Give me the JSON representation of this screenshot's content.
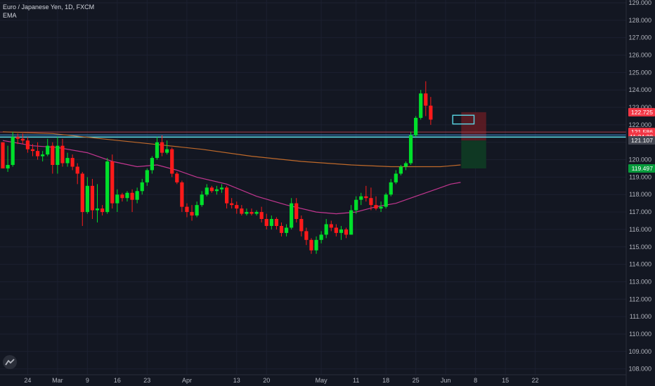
{
  "legend": {
    "symbol": "Euro / Japanese Yen, 1D, FXCM",
    "indicator": "EMA"
  },
  "colors": {
    "background": "#131722",
    "grid": "#1c2030",
    "axis_text": "#b2b5be",
    "up": "#00e02b",
    "down": "#ff1a1a",
    "ema_fast": "#c2368f",
    "ema_slow": "#c06a2a",
    "hline_cyan": "#5ad8e6",
    "hline_blue": "#3d8fd9",
    "hline_red": "#a43d48",
    "stop_zone": "#5e1c24",
    "target_zone": "#0f3a24",
    "price_red": "#f23645",
    "price_green": "#089b3c",
    "price_gray": "#434651"
  },
  "icons": [
    "tradingview-logo-icon"
  ],
  "chart_data": {
    "type": "candlestick",
    "title": "Euro / Japanese Yen, 1D, FXCM",
    "indicators": [
      "EMA"
    ],
    "ylim": [
      108.0,
      129.0
    ],
    "y_ticks": [
      "129.000",
      "128.000",
      "127.000",
      "126.000",
      "125.000",
      "124.000",
      "123.000",
      "122.000",
      "121.000",
      "120.000",
      "119.000",
      "118.000",
      "117.000",
      "116.000",
      "115.000",
      "114.000",
      "113.000",
      "112.000",
      "111.000",
      "110.000",
      "109.000",
      "108.000"
    ],
    "x_ticks": [
      "24",
      "Mar",
      "9",
      "16",
      "23",
      "Apr",
      "13",
      "20",
      "May",
      "11",
      "18",
      "25",
      "Jun",
      "8",
      "15",
      "22"
    ],
    "x_tick_index": [
      5,
      11,
      17,
      23,
      29,
      37,
      47,
      53,
      64,
      71,
      77,
      83,
      89,
      95,
      101,
      107
    ],
    "candles": [
      [
        121.0,
        121.0,
        119.6,
        119.5
      ],
      [
        119.5,
        120.8,
        119.3,
        119.7
      ],
      [
        119.7,
        121.6,
        119.6,
        121.3
      ],
      [
        121.3,
        121.5,
        120.9,
        121.2
      ],
      [
        121.2,
        121.5,
        120.9,
        121.1
      ],
      [
        121.1,
        121.3,
        120.4,
        120.6
      ],
      [
        120.6,
        120.9,
        120.2,
        120.5
      ],
      [
        120.5,
        121.0,
        120.0,
        120.2
      ],
      [
        120.2,
        120.5,
        119.9,
        120.3
      ],
      [
        120.3,
        121.2,
        120.2,
        120.8
      ],
      [
        120.8,
        121.0,
        119.2,
        119.7
      ],
      [
        119.7,
        121.3,
        119.2,
        120.8
      ],
      [
        120.8,
        121.2,
        119.6,
        119.8
      ],
      [
        119.8,
        120.4,
        119.6,
        120.1
      ],
      [
        120.1,
        120.3,
        119.4,
        119.6
      ],
      [
        119.6,
        119.8,
        118.6,
        119.2
      ],
      [
        119.2,
        119.3,
        116.2,
        117.0
      ],
      [
        117.0,
        119.0,
        116.9,
        118.5
      ],
      [
        118.5,
        118.9,
        116.6,
        117.1
      ],
      [
        117.1,
        118.6,
        116.4,
        117.2
      ],
      [
        117.2,
        117.4,
        116.8,
        117.0
      ],
      [
        117.0,
        120.1,
        116.9,
        119.9
      ],
      [
        119.9,
        120.3,
        117.2,
        117.5
      ],
      [
        117.5,
        118.3,
        117.0,
        118.0
      ],
      [
        118.0,
        118.1,
        117.6,
        117.8
      ],
      [
        117.8,
        118.2,
        117.6,
        118.1
      ],
      [
        118.1,
        118.3,
        117.0,
        117.7
      ],
      [
        117.7,
        118.4,
        117.5,
        118.2
      ],
      [
        118.2,
        118.9,
        118.0,
        118.7
      ],
      [
        118.7,
        119.5,
        118.5,
        119.4
      ],
      [
        119.4,
        120.2,
        119.2,
        120.1
      ],
      [
        120.1,
        121.3,
        120.0,
        121.0
      ],
      [
        121.0,
        121.4,
        120.2,
        120.4
      ],
      [
        120.4,
        121.1,
        120.3,
        120.6
      ],
      [
        120.6,
        120.7,
        119.0,
        119.2
      ],
      [
        119.2,
        119.3,
        118.6,
        118.7
      ],
      [
        118.7,
        118.8,
        117.0,
        117.3
      ],
      [
        117.3,
        117.5,
        116.7,
        117.0
      ],
      [
        117.0,
        117.4,
        116.5,
        116.8
      ],
      [
        116.8,
        117.6,
        116.7,
        117.4
      ],
      [
        117.4,
        118.2,
        117.3,
        118.0
      ],
      [
        118.0,
        118.6,
        117.9,
        118.4
      ],
      [
        118.4,
        118.5,
        118.1,
        118.2
      ],
      [
        118.2,
        118.5,
        118.0,
        118.3
      ],
      [
        118.3,
        118.6,
        118.1,
        118.4
      ],
      [
        118.4,
        118.5,
        117.2,
        117.5
      ],
      [
        117.5,
        117.8,
        117.2,
        117.4
      ],
      [
        117.4,
        117.6,
        116.9,
        117.2
      ],
      [
        117.2,
        117.4,
        116.8,
        116.9
      ],
      [
        116.9,
        117.2,
        116.8,
        117.0
      ],
      [
        117.0,
        117.2,
        116.8,
        116.9
      ],
      [
        116.9,
        117.1,
        116.8,
        117.0
      ],
      [
        117.0,
        117.3,
        116.4,
        116.6
      ],
      [
        116.6,
        116.9,
        116.0,
        116.2
      ],
      [
        116.2,
        116.8,
        116.0,
        116.6
      ],
      [
        116.6,
        116.7,
        116.0,
        116.2
      ],
      [
        116.2,
        116.4,
        115.6,
        115.8
      ],
      [
        115.8,
        116.3,
        115.6,
        116.1
      ],
      [
        116.1,
        117.8,
        116.0,
        117.5
      ],
      [
        117.5,
        117.8,
        116.4,
        116.6
      ],
      [
        116.6,
        116.8,
        115.6,
        115.9
      ],
      [
        115.9,
        116.1,
        115.1,
        115.4
      ],
      [
        115.4,
        115.5,
        114.6,
        114.8
      ],
      [
        114.8,
        115.6,
        114.6,
        115.4
      ],
      [
        115.4,
        115.9,
        115.2,
        115.7
      ],
      [
        115.7,
        116.6,
        115.5,
        116.3
      ],
      [
        116.3,
        116.5,
        115.9,
        116.1
      ],
      [
        116.1,
        116.3,
        115.6,
        115.8
      ],
      [
        115.8,
        116.2,
        115.4,
        116.0
      ],
      [
        116.0,
        116.1,
        115.5,
        115.7
      ],
      [
        115.7,
        117.4,
        115.7,
        117.1
      ],
      [
        117.1,
        117.9,
        116.9,
        117.7
      ],
      [
        117.7,
        118.1,
        117.4,
        117.9
      ],
      [
        117.9,
        118.5,
        117.6,
        117.8
      ],
      [
        117.8,
        118.4,
        117.1,
        117.4
      ],
      [
        117.4,
        117.9,
        117.1,
        117.2
      ],
      [
        117.2,
        117.6,
        117.0,
        117.3
      ],
      [
        117.3,
        118.1,
        117.2,
        118.0
      ],
      [
        118.0,
        118.9,
        117.9,
        118.7
      ],
      [
        118.7,
        119.4,
        118.6,
        119.2
      ],
      [
        119.2,
        119.7,
        119.1,
        119.6
      ],
      [
        119.6,
        119.9,
        119.4,
        119.8
      ],
      [
        119.8,
        121.6,
        119.7,
        121.4
      ],
      [
        121.4,
        122.5,
        121.3,
        122.4
      ],
      [
        122.4,
        124.0,
        122.3,
        123.8
      ],
      [
        123.8,
        124.5,
        122.5,
        123.1
      ],
      [
        123.1,
        123.6,
        122.0,
        122.3
      ]
    ],
    "ema_fast": [
      [
        0,
        121.1
      ],
      [
        6,
        120.8
      ],
      [
        11,
        120.7
      ],
      [
        17,
        120.4
      ],
      [
        22,
        119.9
      ],
      [
        27,
        119.6
      ],
      [
        31,
        119.7
      ],
      [
        35,
        119.4
      ],
      [
        39,
        119.0
      ],
      [
        45,
        118.6
      ],
      [
        51,
        117.9
      ],
      [
        57,
        117.4
      ],
      [
        63,
        117.0
      ],
      [
        67,
        116.9
      ],
      [
        71,
        117.0
      ],
      [
        75,
        117.3
      ],
      [
        79,
        117.5
      ],
      [
        83,
        117.9
      ],
      [
        87,
        118.3
      ],
      [
        90,
        118.6
      ],
      [
        92,
        118.7
      ]
    ],
    "ema_slow": [
      [
        0,
        121.6
      ],
      [
        10,
        121.5
      ],
      [
        20,
        121.2
      ],
      [
        30,
        120.9
      ],
      [
        40,
        120.6
      ],
      [
        50,
        120.2
      ],
      [
        60,
        119.9
      ],
      [
        70,
        119.7
      ],
      [
        78,
        119.6
      ],
      [
        84,
        119.6
      ],
      [
        88,
        119.6
      ],
      [
        92,
        119.7
      ]
    ],
    "horizontal_lines": [
      {
        "price": 121.3,
        "color": "cyan"
      },
      {
        "price": 121.42,
        "color": "blue"
      },
      {
        "price": 121.586,
        "color": "red"
      }
    ],
    "price_labels": [
      {
        "text": "122.725",
        "price": 122.725,
        "style": "red"
      },
      {
        "text": "121.586",
        "price": 121.586,
        "style": "red"
      },
      {
        "text": "11:24:28",
        "price": 121.32,
        "style": "red"
      },
      {
        "text": "121.107",
        "price": 121.107,
        "style": "gray"
      },
      {
        "text": "119.497",
        "price": 119.497,
        "style": "green"
      }
    ],
    "position": {
      "start_index": 92,
      "end_index": 97,
      "stop": 122.725,
      "entry": 121.1,
      "target": 119.5,
      "level_box": [
        122.05,
        122.55
      ]
    }
  }
}
